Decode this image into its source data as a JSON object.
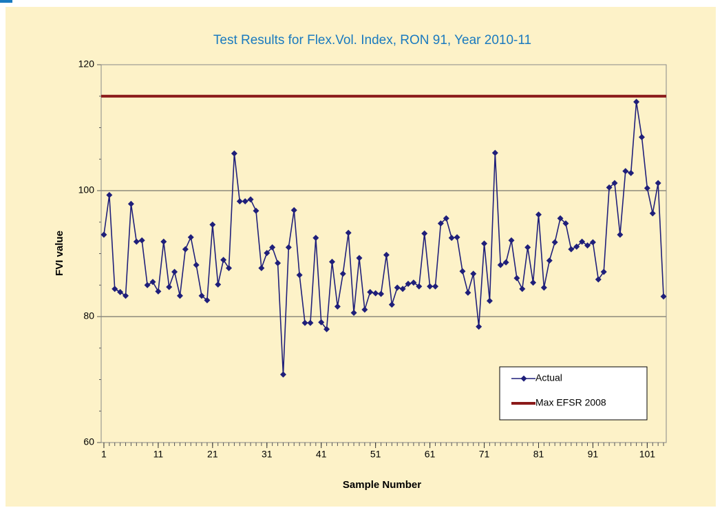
{
  "chart_data": {
    "type": "line",
    "title": "Test Results for Flex.Vol. Index, RON 91, Year 2010-11",
    "x_label": "Sample Number",
    "y_label": "FVI value",
    "x": [
      1,
      2,
      3,
      4,
      5,
      6,
      7,
      8,
      9,
      10,
      11,
      12,
      13,
      14,
      15,
      16,
      17,
      18,
      19,
      20,
      21,
      22,
      23,
      24,
      25,
      26,
      27,
      28,
      29,
      30,
      31,
      32,
      33,
      34,
      35,
      36,
      37,
      38,
      39,
      40,
      41,
      42,
      43,
      44,
      45,
      46,
      47,
      48,
      49,
      50,
      51,
      52,
      53,
      54,
      55,
      56,
      57,
      58,
      59,
      60,
      61,
      62,
      63,
      64,
      65,
      66,
      67,
      68,
      69,
      70,
      71,
      72,
      73,
      74,
      75,
      76,
      77,
      78,
      79,
      80,
      81,
      82,
      83,
      84,
      85,
      86,
      87,
      88,
      89,
      90,
      91,
      92,
      93,
      94,
      95,
      96,
      97,
      98,
      99,
      100,
      101,
      102,
      103,
      104
    ],
    "series": [
      {
        "name": "Actual",
        "color": "#1f1f7a",
        "values": [
          93.0,
          99.3,
          84.4,
          83.9,
          83.3,
          97.9,
          91.9,
          92.1,
          85.0,
          85.5,
          84.0,
          91.9,
          84.7,
          87.1,
          83.3,
          90.7,
          92.6,
          88.2,
          83.3,
          82.6,
          94.6,
          85.1,
          89.0,
          87.7,
          105.9,
          98.3,
          98.3,
          98.6,
          96.8,
          87.7,
          90.1,
          91.0,
          88.5,
          70.8,
          91.0,
          96.9,
          86.6,
          79.0,
          79.0,
          92.5,
          79.1,
          78.0,
          88.7,
          81.6,
          86.8,
          93.3,
          80.6,
          89.3,
          81.1,
          83.9,
          83.7,
          83.6,
          89.8,
          81.9,
          84.6,
          84.4,
          85.2,
          85.4,
          84.8,
          93.2,
          84.8,
          84.8,
          94.8,
          95.6,
          92.5,
          92.6,
          87.2,
          83.8,
          86.8,
          78.4,
          91.6,
          82.5,
          106.0,
          88.2,
          88.6,
          92.1,
          86.1,
          84.4,
          91.0,
          85.4,
          96.2,
          84.6,
          88.9,
          91.8,
          95.6,
          94.8,
          90.7,
          91.1,
          91.9,
          91.3,
          91.8,
          85.9,
          87.1,
          100.5,
          101.2,
          93.0,
          103.1,
          102.8,
          114.1,
          108.5,
          100.4,
          96.4,
          101.2,
          83.2
        ]
      },
      {
        "name": "Max EFSR 2008",
        "color": "#8b1a1a",
        "value": 115
      }
    ],
    "xlim": [
      0.5,
      104.5
    ],
    "xticks": [
      1,
      11,
      21,
      31,
      41,
      51,
      61,
      71,
      81,
      91,
      101
    ],
    "ylim": [
      60,
      120
    ],
    "yticks": [
      60,
      80,
      100,
      120
    ],
    "grid": true,
    "legend": "lower right"
  }
}
